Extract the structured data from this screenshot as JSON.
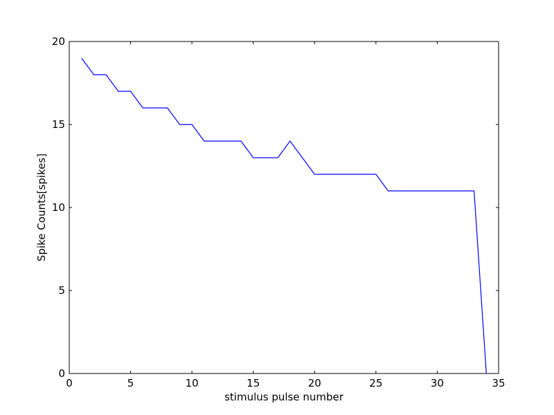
{
  "chart_data": {
    "type": "line",
    "xlabel": "stimulus pulse number",
    "ylabel": "Spike Counts[spikes]",
    "xlim": [
      0,
      35
    ],
    "ylim": [
      0,
      20
    ],
    "xticks": [
      0,
      5,
      10,
      15,
      20,
      25,
      30,
      35
    ],
    "yticks": [
      0,
      5,
      10,
      15,
      20
    ],
    "xtick_labels": [
      "0",
      "5",
      "10",
      "15",
      "20",
      "25",
      "30",
      "35"
    ],
    "ytick_labels": [
      "0",
      "5",
      "10",
      "15",
      "20"
    ],
    "grid": false,
    "series": [
      {
        "color": "#0000ff",
        "x": [
          1,
          2,
          3,
          4,
          5,
          6,
          7,
          8,
          9,
          10,
          11,
          12,
          13,
          14,
          15,
          16,
          17,
          18,
          19,
          20,
          21,
          22,
          23,
          24,
          25,
          26,
          27,
          28,
          29,
          30,
          31,
          32,
          33,
          34
        ],
        "y": [
          19,
          18,
          18,
          17,
          17,
          16,
          16,
          16,
          15,
          15,
          14,
          14,
          14,
          14,
          13,
          13,
          13,
          14,
          13,
          12,
          12,
          12,
          12,
          12,
          12,
          11,
          11,
          11,
          11,
          11,
          11,
          11,
          11,
          0
        ]
      }
    ]
  }
}
